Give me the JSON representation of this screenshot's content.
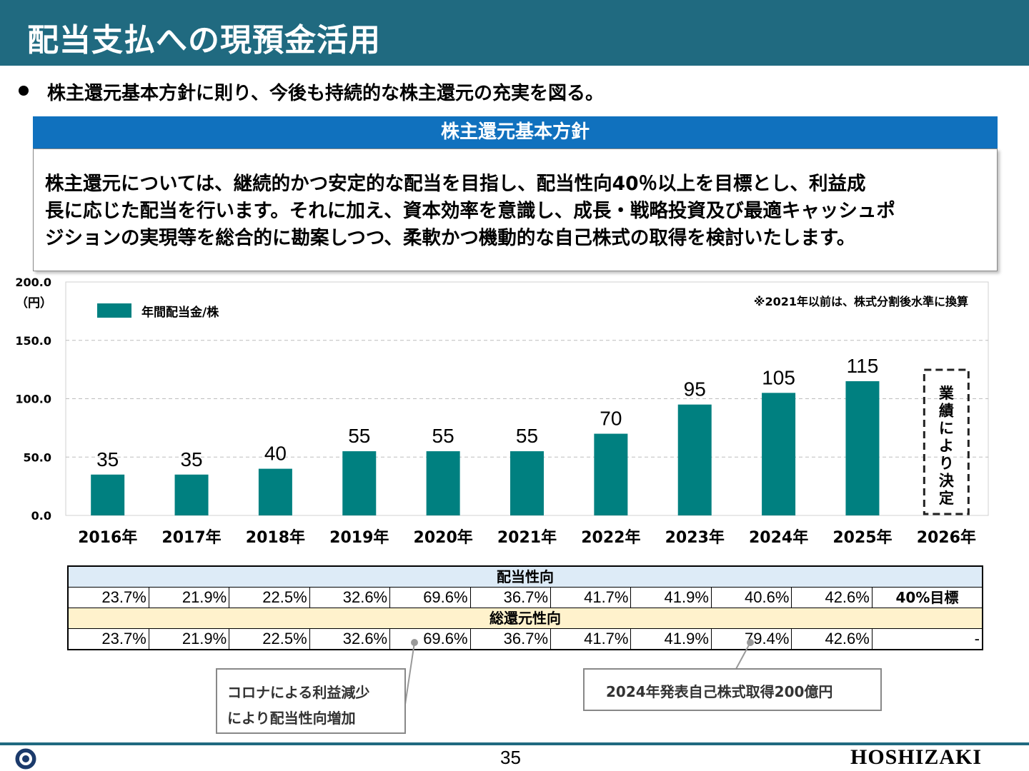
{
  "header": {
    "title": "配当支払への現預金活用"
  },
  "lead": "株主還元基本方針に則り、今後も持続的な株主還元の充実を図る。",
  "policy": {
    "heading": "株主還元基本方針",
    "lines": [
      "株主還元については、継続的かつ安定的な配当を目指し、配当性向40％以上を目標とし、利益成",
      "長に応じた配当を行います。それに加え、資本効率を意識し、成長・戦略投資及び最適キャッシュポ",
      "ジションの実現等を総合的に勘案しつつ、柔軟かつ機動的な自己株式の取得を検討いたします。"
    ]
  },
  "chart_data": {
    "type": "bar",
    "categories": [
      "2016年",
      "2017年",
      "2018年",
      "2019年",
      "2020年",
      "2021年",
      "2022年",
      "2023年",
      "2024年",
      "2025年",
      "2026年"
    ],
    "series": [
      {
        "name": "年間配当金/株",
        "values": [
          35,
          35,
          40,
          55,
          55,
          55,
          70,
          95,
          105,
          115,
          null
        ],
        "color": "#008080"
      }
    ],
    "ylim": [
      0,
      200
    ],
    "yticks": [
      "0.0",
      "50.0",
      "100.0",
      "150.0",
      "200.0"
    ],
    "ylabel": "（円）",
    "grid": true,
    "legend_position": "top-left",
    "note": "※2021年以前は、株式分割後水準に換算",
    "pending_label": "業績により決定"
  },
  "table": {
    "payout_header": "配当性向",
    "payout": [
      "23.7%",
      "21.9%",
      "22.5%",
      "32.6%",
      "69.6%",
      "36.7%",
      "41.7%",
      "41.9%",
      "40.6%",
      "42.6%",
      "40%目標"
    ],
    "total_header": "総還元性向",
    "total": [
      "23.7%",
      "21.9%",
      "22.5%",
      "32.6%",
      "69.6%",
      "36.7%",
      "41.7%",
      "41.9%",
      "79.4%",
      "42.6%",
      "-"
    ]
  },
  "notes": {
    "covid": [
      "コロナによる利益減少",
      "により配当性向増加"
    ],
    "buyback": "2024年発表自己株式取得200億円"
  },
  "footer": {
    "page": "35",
    "logo": "HOSHIZAKI"
  }
}
